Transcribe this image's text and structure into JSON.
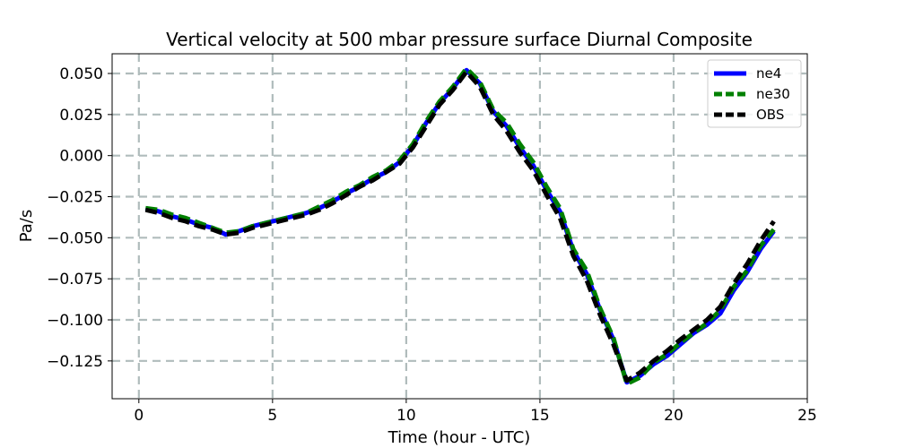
{
  "chart_data": {
    "type": "line",
    "title": "Vertical velocity at 500 mbar pressure surface Diurnal Composite",
    "xlabel": "Time (hour - UTC)",
    "ylabel": "Pa/s",
    "xlim": [
      -1,
      25
    ],
    "ylim": [
      -0.148,
      0.062
    ],
    "xticks": [
      0,
      5,
      10,
      15,
      20,
      25
    ],
    "xtick_labels": [
      "0",
      "5",
      "10",
      "15",
      "20",
      "25"
    ],
    "yticks": [
      0.05,
      0.025,
      0.0,
      -0.025,
      -0.05,
      -0.075,
      -0.1,
      -0.125
    ],
    "ytick_labels": [
      "0.050",
      "0.025",
      "0.000",
      "−0.025",
      "−0.050",
      "−0.075",
      "−0.100",
      "−0.125"
    ],
    "grid": true,
    "legend_position": "top-right",
    "x": [
      0.25,
      0.75,
      1.25,
      1.75,
      2.25,
      2.75,
      3.25,
      3.75,
      4.25,
      4.75,
      5.25,
      5.75,
      6.25,
      6.75,
      7.25,
      7.75,
      8.25,
      8.75,
      9.25,
      9.75,
      10.25,
      10.75,
      11.25,
      11.75,
      12.25,
      12.75,
      13.25,
      13.75,
      14.25,
      14.75,
      15.25,
      15.75,
      16.25,
      16.75,
      17.25,
      17.75,
      18.25,
      18.75,
      19.25,
      19.75,
      20.25,
      20.75,
      21.25,
      21.75,
      22.25,
      22.75,
      23.25,
      23.75
    ],
    "series": [
      {
        "name": "ne4",
        "color": "#0000ff",
        "style": "solid",
        "values": [
          -0.032,
          -0.034,
          -0.037,
          -0.039,
          -0.042,
          -0.044,
          -0.048,
          -0.046,
          -0.043,
          -0.041,
          -0.039,
          -0.037,
          -0.035,
          -0.032,
          -0.028,
          -0.023,
          -0.019,
          -0.014,
          -0.01,
          -0.004,
          0.006,
          0.02,
          0.032,
          0.041,
          0.052,
          0.044,
          0.027,
          0.018,
          0.005,
          -0.006,
          -0.021,
          -0.034,
          -0.058,
          -0.072,
          -0.094,
          -0.112,
          -0.138,
          -0.134,
          -0.127,
          -0.122,
          -0.115,
          -0.108,
          -0.103,
          -0.096,
          -0.082,
          -0.071,
          -0.057,
          -0.046
        ]
      },
      {
        "name": "ne30",
        "color": "#008000",
        "style": "dashed",
        "values": [
          -0.032,
          -0.033,
          -0.036,
          -0.038,
          -0.041,
          -0.044,
          -0.047,
          -0.046,
          -0.043,
          -0.041,
          -0.039,
          -0.037,
          -0.035,
          -0.031,
          -0.027,
          -0.022,
          -0.018,
          -0.013,
          -0.009,
          -0.003,
          0.007,
          0.021,
          0.033,
          0.042,
          0.053,
          0.045,
          0.028,
          0.02,
          0.007,
          -0.004,
          -0.019,
          -0.032,
          -0.057,
          -0.07,
          -0.093,
          -0.111,
          -0.139,
          -0.135,
          -0.126,
          -0.121,
          -0.114,
          -0.108,
          -0.102,
          -0.094,
          -0.08,
          -0.07,
          -0.055,
          -0.045
        ]
      },
      {
        "name": "OBS",
        "color": "#000000",
        "style": "dashed",
        "values": [
          -0.033,
          -0.035,
          -0.038,
          -0.04,
          -0.043,
          -0.045,
          -0.048,
          -0.047,
          -0.044,
          -0.042,
          -0.04,
          -0.038,
          -0.036,
          -0.033,
          -0.029,
          -0.024,
          -0.019,
          -0.015,
          -0.01,
          -0.005,
          0.005,
          0.018,
          0.031,
          0.04,
          0.051,
          0.042,
          0.025,
          0.015,
          0.002,
          -0.009,
          -0.024,
          -0.038,
          -0.061,
          -0.076,
          -0.097,
          -0.115,
          -0.137,
          -0.132,
          -0.125,
          -0.119,
          -0.112,
          -0.106,
          -0.1,
          -0.092,
          -0.078,
          -0.066,
          -0.052,
          -0.04
        ]
      }
    ]
  }
}
